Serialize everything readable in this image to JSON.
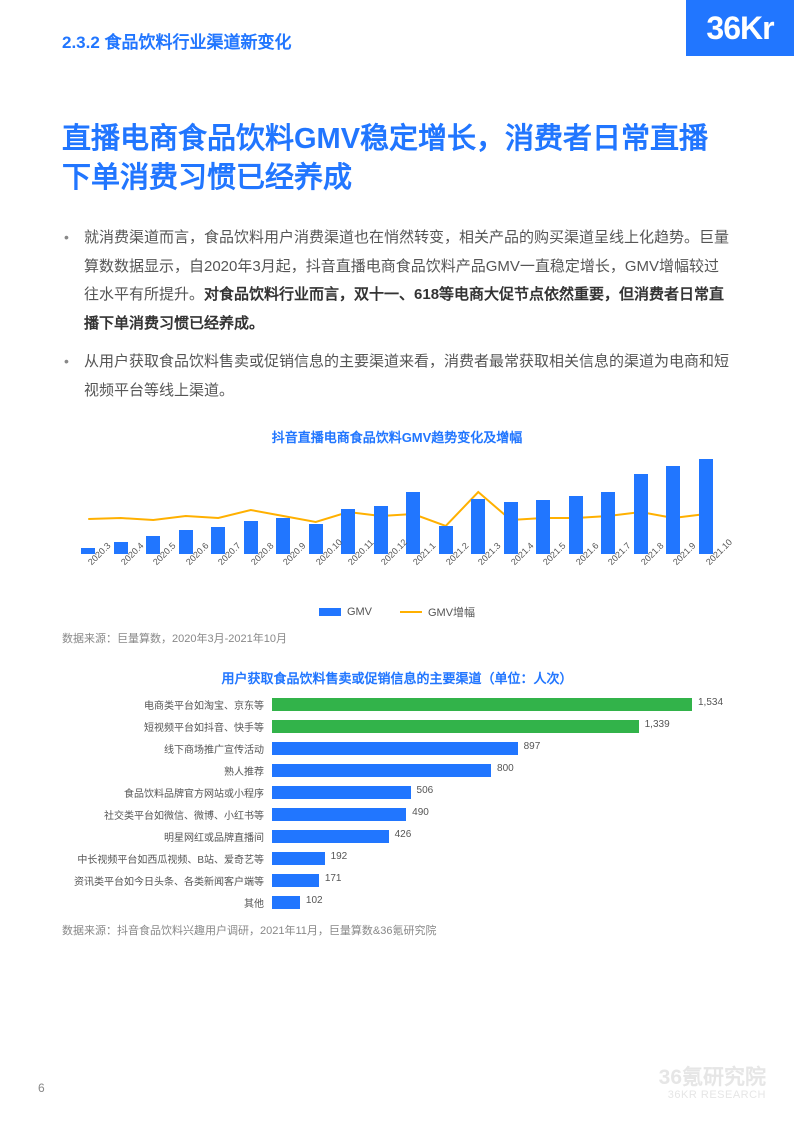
{
  "header": {
    "section_number": "2.3.2",
    "section_title": "食品饮料行业渠道新变化",
    "logo_text": "36Kr"
  },
  "headline": "直播电商食品饮料GMV稳定增长，消费者日常直播下单消费习惯已经养成",
  "bullets": [
    {
      "pre": "就消费渠道而言，食品饮料用户消费渠道也在悄然转变，相关产品的购买渠道呈线上化趋势。巨量算数数据显示，自2020年3月起，抖音直播电商食品饮料产品GMV一直稳定增长，GMV增幅较过往水平有所提升。",
      "bold": "对食品饮料行业而言，双十一、618等电商大促节点依然重要，但消费者日常直播下单消费习惯已经养成。"
    },
    {
      "pre": "从用户获取食品饮料售卖或促销信息的主要渠道来看，消费者最常获取相关信息的渠道为电商和短视频平台等线上渠道。",
      "bold": ""
    }
  ],
  "chart1": {
    "title": "抖音直播电商食品饮料GMV趋势变化及增幅",
    "categories": [
      "2020.3",
      "2020.4",
      "2020.5",
      "2020.6",
      "2020.7",
      "2020.8",
      "2020.9",
      "2020.10",
      "2020.11",
      "2020.12",
      "2021.1",
      "2021.2",
      "2021.3",
      "2021.4",
      "2021.5",
      "2021.6",
      "2021.7",
      "2021.8",
      "2021.9",
      "2021.10"
    ],
    "gmv_values": [
      6,
      12,
      18,
      24,
      27,
      33,
      36,
      30,
      45,
      48,
      62,
      28,
      55,
      52,
      54,
      58,
      62,
      80,
      88,
      95
    ],
    "line_values": [
      35,
      36,
      34,
      38,
      36,
      44,
      38,
      32,
      42,
      38,
      40,
      28,
      62,
      34,
      36,
      36,
      38,
      42,
      36,
      40
    ],
    "bar_color": "#2176ff",
    "line_color": "#ffb000",
    "ymax": 100,
    "legend": {
      "gmv": "GMV",
      "growth": "GMV增幅"
    },
    "source": "数据来源：巨量算数，2020年3月-2021年10月"
  },
  "chart2": {
    "title": "用户获取食品饮料售卖或促销信息的主要渠道（单位：人次）",
    "max": 1534,
    "rows": [
      {
        "label": "电商类平台如淘宝、京东等",
        "value": 1534,
        "color": "#32b34a"
      },
      {
        "label": "短视频平台如抖音、快手等",
        "value": 1339,
        "color": "#32b34a"
      },
      {
        "label": "线下商场推广宣传活动",
        "value": 897,
        "color": "#2176ff"
      },
      {
        "label": "熟人推荐",
        "value": 800,
        "color": "#2176ff"
      },
      {
        "label": "食品饮料品牌官方网站或小程序",
        "value": 506,
        "color": "#2176ff"
      },
      {
        "label": "社交类平台如微信、微博、小红书等",
        "value": 490,
        "color": "#2176ff"
      },
      {
        "label": "明星网红或品牌直播间",
        "value": 426,
        "color": "#2176ff"
      },
      {
        "label": "中长视频平台如西瓜视频、B站、爱奇艺等",
        "value": 192,
        "color": "#2176ff"
      },
      {
        "label": "资讯类平台如今日头条、各类新闻客户端等",
        "value": 171,
        "color": "#2176ff"
      },
      {
        "label": "其他",
        "value": 102,
        "color": "#2176ff"
      }
    ],
    "source": "数据来源：抖音食品饮料兴趣用户调研，2021年11月，巨量算数&36氪研究院"
  },
  "footer": {
    "page": "6",
    "watermark_cn": "36氪研究院",
    "watermark_en": "36KR RESEARCH"
  }
}
